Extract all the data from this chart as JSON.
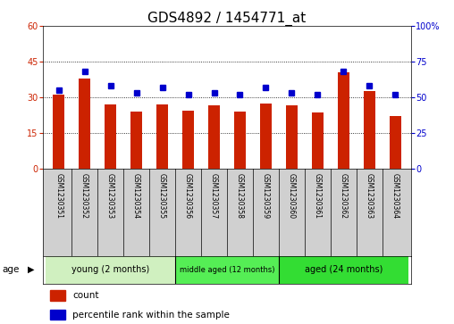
{
  "title": "GDS4892 / 1454771_at",
  "samples": [
    "GSM1230351",
    "GSM1230352",
    "GSM1230353",
    "GSM1230354",
    "GSM1230355",
    "GSM1230356",
    "GSM1230357",
    "GSM1230358",
    "GSM1230359",
    "GSM1230360",
    "GSM1230361",
    "GSM1230362",
    "GSM1230363",
    "GSM1230364"
  ],
  "counts": [
    31.0,
    38.0,
    27.0,
    24.0,
    27.0,
    24.5,
    26.5,
    24.0,
    27.5,
    26.5,
    23.5,
    40.5,
    32.5,
    22.0
  ],
  "percentiles": [
    55,
    68,
    58,
    53,
    57,
    52,
    53,
    52,
    57,
    53,
    52,
    68,
    58,
    52
  ],
  "bar_color": "#cc2200",
  "dot_color": "#0000cc",
  "left_ylim": [
    0,
    60
  ],
  "right_ylim": [
    0,
    100
  ],
  "left_yticks": [
    0,
    15,
    30,
    45,
    60
  ],
  "right_yticks": [
    0,
    25,
    50,
    75,
    100
  ],
  "right_yticklabels": [
    "0",
    "25",
    "50",
    "75",
    "100%"
  ],
  "grid_values": [
    15,
    30,
    45
  ],
  "groups": [
    {
      "label": "young (2 months)",
      "start": 0,
      "end": 4,
      "color": "#d0f0c0"
    },
    {
      "label": "middle aged (12 months)",
      "start": 5,
      "end": 8,
      "color": "#55ee55"
    },
    {
      "label": "aged (24 months)",
      "start": 9,
      "end": 13,
      "color": "#33dd33"
    }
  ],
  "age_label": "age",
  "legend_count_label": "count",
  "legend_percentile_label": "percentile rank within the sample",
  "bg_color": "#ffffff",
  "plot_bg_color": "#ffffff",
  "tick_area_bg": "#d0d0d0",
  "title_fontsize": 11,
  "tick_fontsize": 7,
  "bar_width": 0.45,
  "sample_fontsize": 5.5,
  "group_fontsize": 7.0,
  "legend_fontsize": 7.5
}
